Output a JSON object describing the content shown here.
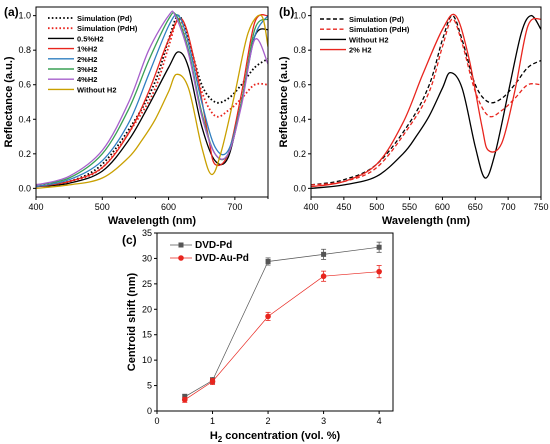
{
  "chart_data": [
    {
      "panel": "(a)",
      "type": "line",
      "xlabel": "Wavelength (nm)",
      "ylabel": "Reflectance (a.u.)",
      "xlim": [
        400,
        750
      ],
      "ylim": [
        -0.05,
        1.05
      ],
      "xticks": [
        400,
        500,
        600,
        700
      ],
      "yticks": [
        0.0,
        0.2,
        0.4,
        0.6,
        0.8,
        1.0
      ],
      "legend": "top-left",
      "series": [
        {
          "name": "Simulation (Pd)",
          "color": "#000000",
          "dash": "dotted",
          "x": [
            400,
            450,
            500,
            550,
            580,
            600,
            615,
            630,
            650,
            670,
            690,
            710,
            730,
            750
          ],
          "y": [
            0.02,
            0.04,
            0.14,
            0.4,
            0.62,
            0.86,
            1.0,
            0.86,
            0.6,
            0.5,
            0.52,
            0.6,
            0.7,
            0.75
          ]
        },
        {
          "name": "Simulation (PdH)",
          "color": "#e8251e",
          "dash": "dotted",
          "x": [
            400,
            450,
            500,
            550,
            580,
            600,
            615,
            630,
            650,
            670,
            690,
            710,
            730,
            750
          ],
          "y": [
            0.02,
            0.04,
            0.12,
            0.38,
            0.58,
            0.82,
            0.98,
            0.84,
            0.56,
            0.42,
            0.45,
            0.52,
            0.6,
            0.6
          ]
        },
        {
          "name": "0.5%H2",
          "color": "#000000",
          "dash": "solid",
          "x": [
            400,
            450,
            500,
            540,
            570,
            600,
            615,
            630,
            650,
            670,
            690,
            710,
            730,
            750
          ],
          "y": [
            0.01,
            0.03,
            0.1,
            0.28,
            0.48,
            0.7,
            0.79,
            0.7,
            0.36,
            0.16,
            0.18,
            0.5,
            0.88,
            0.92
          ]
        },
        {
          "name": "1%H2",
          "color": "#e8251e",
          "dash": "solid",
          "x": [
            400,
            450,
            500,
            540,
            570,
            600,
            620,
            640,
            660,
            670,
            690,
            710,
            730,
            750
          ],
          "y": [
            0.01,
            0.04,
            0.12,
            0.32,
            0.56,
            0.86,
            0.98,
            0.72,
            0.3,
            0.14,
            0.2,
            0.55,
            0.96,
            1.0
          ]
        },
        {
          "name": "2%H2",
          "color": "#2f7fc1",
          "dash": "solid",
          "x": [
            400,
            450,
            500,
            540,
            570,
            600,
            615,
            630,
            650,
            670,
            690,
            710,
            730,
            750
          ],
          "y": [
            0.01,
            0.05,
            0.16,
            0.38,
            0.66,
            0.94,
            1.0,
            0.84,
            0.5,
            0.24,
            0.22,
            0.5,
            0.88,
            1.0
          ]
        },
        {
          "name": "3%H2",
          "color": "#3aa055",
          "dash": "solid",
          "x": [
            400,
            450,
            500,
            540,
            570,
            600,
            612,
            630,
            650,
            670,
            690,
            710,
            730,
            750
          ],
          "y": [
            0.02,
            0.06,
            0.2,
            0.46,
            0.74,
            0.98,
            1.0,
            0.8,
            0.44,
            0.2,
            0.2,
            0.5,
            0.92,
            0.98
          ]
        },
        {
          "name": "4%H2",
          "color": "#a65fcb",
          "dash": "solid",
          "x": [
            400,
            450,
            500,
            540,
            570,
            600,
            610,
            630,
            650,
            670,
            690,
            710,
            730,
            750
          ],
          "y": [
            0.02,
            0.07,
            0.22,
            0.5,
            0.8,
            1.0,
            1.0,
            0.78,
            0.42,
            0.2,
            0.2,
            0.48,
            0.86,
            0.72
          ]
        },
        {
          "name": "Without H2",
          "color": "#c9a000",
          "dash": "solid",
          "x": [
            400,
            450,
            500,
            540,
            560,
            580,
            600,
            612,
            630,
            650,
            665,
            680,
            700,
            720,
            740,
            750
          ],
          "y": [
            0.0,
            0.02,
            0.06,
            0.18,
            0.28,
            0.4,
            0.56,
            0.66,
            0.58,
            0.24,
            0.08,
            0.22,
            0.55,
            0.9,
            1.0,
            0.82
          ]
        }
      ]
    },
    {
      "panel": "(b)",
      "type": "line",
      "xlabel": "Wavelength (nm)",
      "ylabel": "Reflectance (a.u.)",
      "xlim": [
        400,
        750
      ],
      "ylim": [
        -0.05,
        1.05
      ],
      "xticks": [
        400,
        450,
        500,
        550,
        600,
        650,
        700,
        750
      ],
      "yticks": [
        0.0,
        0.2,
        0.4,
        0.6,
        0.8,
        1.0
      ],
      "legend": "top-left",
      "series": [
        {
          "name": "Simulation (Pd)",
          "color": "#000000",
          "dash": "dashed",
          "x": [
            400,
            450,
            500,
            550,
            580,
            600,
            615,
            630,
            650,
            670,
            690,
            710,
            730,
            750
          ],
          "y": [
            0.02,
            0.05,
            0.14,
            0.38,
            0.6,
            0.86,
            1.0,
            0.86,
            0.6,
            0.5,
            0.52,
            0.6,
            0.7,
            0.74
          ]
        },
        {
          "name": "Simulation (PdH)",
          "color": "#e8251e",
          "dash": "dashed",
          "x": [
            400,
            450,
            500,
            550,
            580,
            600,
            615,
            630,
            650,
            670,
            690,
            710,
            730,
            750
          ],
          "y": [
            0.02,
            0.04,
            0.12,
            0.36,
            0.56,
            0.82,
            0.98,
            0.84,
            0.56,
            0.42,
            0.45,
            0.52,
            0.6,
            0.6
          ]
        },
        {
          "name": "Without H2",
          "color": "#000000",
          "dash": "solid",
          "x": [
            400,
            450,
            500,
            540,
            560,
            580,
            600,
            612,
            630,
            650,
            665,
            680,
            700,
            720,
            735,
            750
          ],
          "y": [
            0.0,
            0.02,
            0.07,
            0.2,
            0.3,
            0.42,
            0.58,
            0.67,
            0.58,
            0.24,
            0.06,
            0.2,
            0.55,
            0.9,
            1.0,
            0.92
          ]
        },
        {
          "name": "2% H2",
          "color": "#e8251e",
          "dash": "solid",
          "x": [
            400,
            450,
            500,
            540,
            570,
            600,
            620,
            640,
            660,
            670,
            690,
            710,
            730,
            750
          ],
          "y": [
            0.01,
            0.04,
            0.14,
            0.38,
            0.66,
            0.92,
            1.0,
            0.76,
            0.36,
            0.22,
            0.26,
            0.56,
            0.94,
            0.98
          ]
        }
      ]
    },
    {
      "panel": "(c)",
      "type": "line",
      "xlabel": "H2 concentration (vol. %)",
      "xlabel_main": "H",
      "xlabel_sub": "2",
      "xlabel_rest": " concentration (vol. %)",
      "ylabel": "Centroid shift (nm)",
      "xlim": [
        0,
        4.25
      ],
      "ylim": [
        0,
        35
      ],
      "xticks": [
        0,
        1,
        2,
        3,
        4
      ],
      "yticks": [
        0,
        5,
        10,
        15,
        20,
        25,
        30,
        35
      ],
      "legend": "top-left",
      "series": [
        {
          "name": "DVD-Pd",
          "color": "#555555",
          "marker": "square",
          "x": [
            0.5,
            1,
            2,
            3,
            4
          ],
          "y": [
            2.8,
            6.0,
            29.4,
            30.8,
            32.2
          ],
          "err": [
            0.5,
            0.6,
            0.7,
            1.0,
            1.0
          ]
        },
        {
          "name": "DVD-Au-Pd",
          "color": "#e8251e",
          "marker": "circle",
          "x": [
            0.5,
            1,
            2,
            3,
            4
          ],
          "y": [
            2.2,
            5.8,
            18.6,
            26.5,
            27.4
          ],
          "err": [
            0.5,
            0.6,
            0.8,
            1.0,
            1.2
          ]
        }
      ]
    }
  ]
}
